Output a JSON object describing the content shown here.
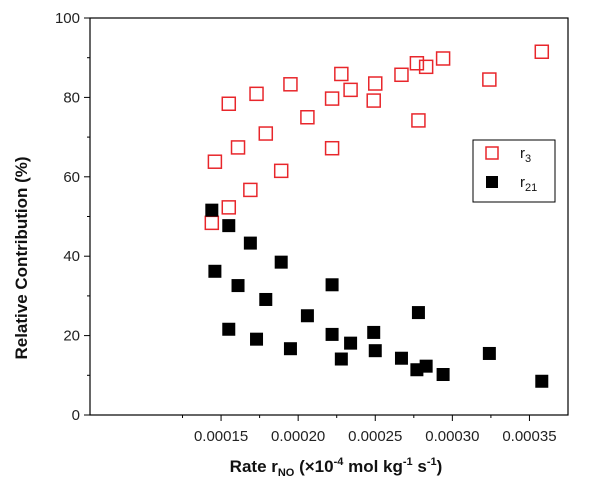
{
  "chart_data": {
    "type": "scatter",
    "title": "",
    "xlabel": {
      "main": "Rate r",
      "sub": "NO",
      "units_pre": " (×10",
      "units_exp1": "-4",
      "units_mid": " mol kg",
      "units_exp2": "-1",
      "units_mid2": " s",
      "units_exp3": "-1",
      "units_post": ")"
    },
    "ylabel": "Relative Contribution (%)",
    "xlim": [
      6.5e-05,
      0.000375
    ],
    "ylim": [
      0,
      100
    ],
    "xticks": [
      0.00015,
      0.0002,
      0.00025,
      0.0003,
      0.00035
    ],
    "xtick_labels": [
      "0.00015",
      "0.00020",
      "0.00025",
      "0.00030",
      "0.00035"
    ],
    "yticks": [
      0,
      20,
      40,
      60,
      80,
      100
    ],
    "ytick_labels": [
      "0",
      "20",
      "40",
      "60",
      "80",
      "100"
    ],
    "legend_position": "right",
    "series": [
      {
        "name": "r",
        "name_sub": "3",
        "marker": "open-square",
        "color": "#e8262b",
        "points": [
          [
            0.000144,
            48.4
          ],
          [
            0.000146,
            63.8
          ],
          [
            0.000155,
            52.3
          ],
          [
            0.000155,
            78.4
          ],
          [
            0.000161,
            67.4
          ],
          [
            0.000169,
            56.7
          ],
          [
            0.000173,
            80.9
          ],
          [
            0.000179,
            70.9
          ],
          [
            0.000189,
            61.5
          ],
          [
            0.000195,
            83.3
          ],
          [
            0.000206,
            75.0
          ],
          [
            0.000222,
            67.2
          ],
          [
            0.000222,
            79.7
          ],
          [
            0.000228,
            85.9
          ],
          [
            0.000234,
            81.9
          ],
          [
            0.000249,
            79.2
          ],
          [
            0.00025,
            83.5
          ],
          [
            0.000267,
            85.7
          ],
          [
            0.000277,
            88.6
          ],
          [
            0.000278,
            74.2
          ],
          [
            0.000283,
            87.7
          ],
          [
            0.000294,
            89.8
          ],
          [
            0.000324,
            84.5
          ],
          [
            0.000358,
            91.5
          ]
        ]
      },
      {
        "name": "r",
        "name_sub": "21",
        "marker": "filled-square",
        "color": "#000000",
        "points": [
          [
            0.000144,
            51.6
          ],
          [
            0.000146,
            36.2
          ],
          [
            0.000155,
            47.7
          ],
          [
            0.000155,
            21.6
          ],
          [
            0.000161,
            32.6
          ],
          [
            0.000169,
            43.3
          ],
          [
            0.000173,
            19.1
          ],
          [
            0.000179,
            29.1
          ],
          [
            0.000189,
            38.5
          ],
          [
            0.000195,
            16.7
          ],
          [
            0.000206,
            25.0
          ],
          [
            0.000222,
            20.3
          ],
          [
            0.000222,
            32.8
          ],
          [
            0.000228,
            14.1
          ],
          [
            0.000234,
            18.1
          ],
          [
            0.000249,
            20.8
          ],
          [
            0.00025,
            16.2
          ],
          [
            0.000267,
            14.3
          ],
          [
            0.000277,
            11.4
          ],
          [
            0.000278,
            25.8
          ],
          [
            0.000283,
            12.3
          ],
          [
            0.000294,
            10.2
          ],
          [
            0.000324,
            15.5
          ],
          [
            0.000358,
            8.5
          ]
        ]
      }
    ]
  }
}
